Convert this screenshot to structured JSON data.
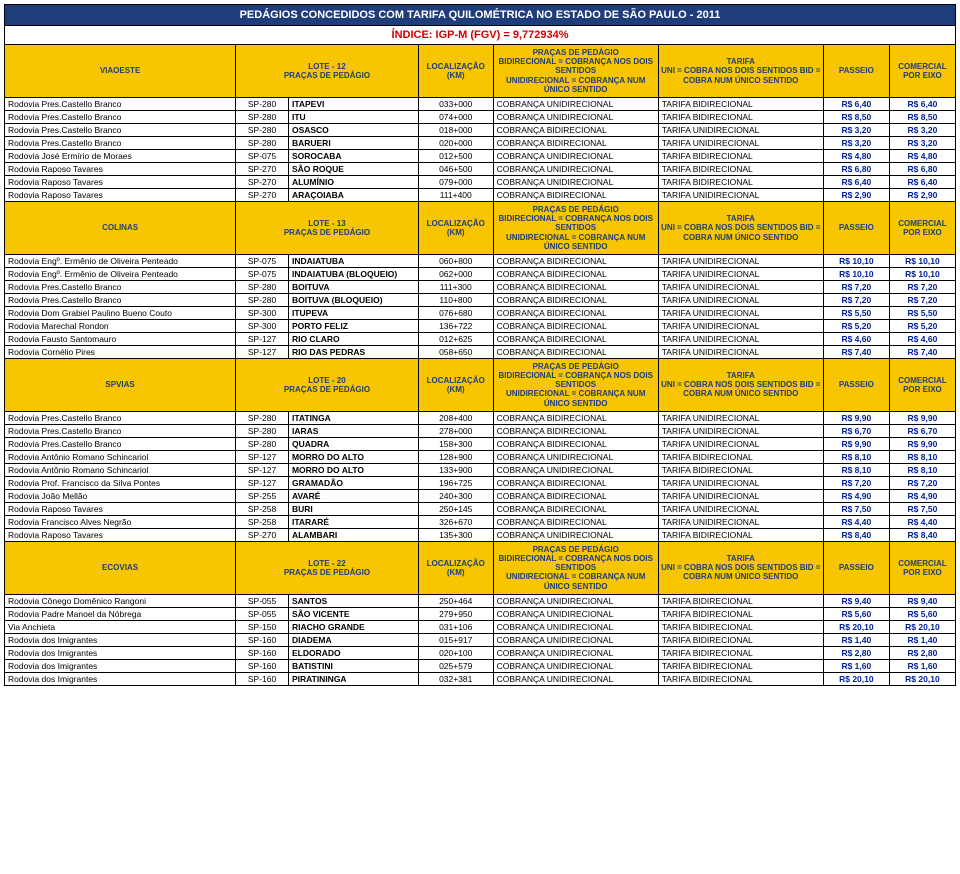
{
  "title": "PEDÁGIOS CONCEDIDOS COM TARIFA QUILOMÉTRICA NO ESTADO DE SÃO PAULO - 2011",
  "index": "ÍNDICE: IGP-M (FGV) = 9,772934%",
  "colors": {
    "title_bg": "#1f3d7a",
    "title_fg": "#ffffff",
    "index_fg": "#d10000",
    "header_bg": "#f7c600",
    "header_fg": "#1f3d7a",
    "price_fg": "#0020a0"
  },
  "header_labels": {
    "lote": "LOCALIZAÇÃO\n(KM)",
    "pracas_title": "PRAÇAS DE PEDÁGIO",
    "pracas_sub": "BIDIRECIONAL = COBRANÇA NOS DOIS SENTIDOS\nUNIDIRECIONAL = COBRANÇA NUM ÚNICO SENTIDO",
    "tarifa_title": "TARIFA",
    "tarifa_sub": "UNI = COBRA NOS DOIS SENTIDOS BID = COBRA NUM ÚNICO SENTIDO",
    "passeio": "PASSEIO",
    "comercial": "COMERCIAL\nPOR EIXO"
  },
  "sections": [
    {
      "concess": "VIAOESTE",
      "lote": "LOTE - 12\nPRAÇAS DE PEDÁGIO",
      "rows": [
        [
          "Rodovia Pres.Castello Branco",
          "SP-280",
          "ITAPEVI",
          "033+000",
          "COBRANÇA UNIDIRECIONAL",
          "TARIFA BIDIRECIONAL",
          "R$ 6,40",
          "R$ 6,40"
        ],
        [
          "Rodovia Pres.Castello Branco",
          "SP-280",
          "ITU",
          "074+000",
          "COBRANÇA UNIDIRECIONAL",
          "TARIFA BIDIRECIONAL",
          "R$ 8,50",
          "R$ 8,50"
        ],
        [
          "Rodovia Pres.Castello Branco",
          "SP-280",
          "OSASCO",
          "018+000",
          "COBRANÇA BIDIRECIONAL",
          "TARIFA UNIDIRECIONAL",
          "R$ 3,20",
          "R$ 3,20"
        ],
        [
          "Rodovia Pres.Castello Branco",
          "SP-280",
          "BARUERI",
          "020+000",
          "COBRANÇA BIDIRECIONAL",
          "TARIFA UNIDIRECIONAL",
          "R$ 3,20",
          "R$ 3,20"
        ],
        [
          "Rodovia José Ermírio de Moraes",
          "SP-075",
          "SOROCABA",
          "012+500",
          "COBRANÇA UNIDIRECIONAL",
          "TARIFA BIDIRECIONAL",
          "R$ 4,80",
          "R$ 4,80"
        ],
        [
          "Rodovia Raposo Tavares",
          "SP-270",
          "SÃO ROQUE",
          "046+500",
          "COBRANÇA UNIDIRECIONAL",
          "TARIFA BIDIRECIONAL",
          "R$ 6,80",
          "R$ 6,80"
        ],
        [
          "Rodovia Raposo Tavares",
          "SP-270",
          "ALUMÍNIO",
          "079+000",
          "COBRANÇA UNIDIRECIONAL",
          "TARIFA BIDIRECIONAL",
          "R$ 6,40",
          "R$ 6,40"
        ],
        [
          "Rodovia Raposo Tavares",
          "SP-270",
          "ARAÇOIABA",
          "111+400",
          "COBRANÇA BIDIRECIONAL",
          "TARIFA UNIDIRECIONAL",
          "R$ 2,90",
          "R$ 2,90"
        ]
      ]
    },
    {
      "concess": "COLINAS",
      "lote": "LOTE - 13\nPRAÇAS DE PEDÁGIO",
      "rows": [
        [
          "Rodovia Engº. Ermênio de Oliveira Penteado",
          "SP-075",
          "INDAIATUBA",
          "060+800",
          "COBRANÇA BIDIRECIONAL",
          "TARIFA UNIDIRECIONAL",
          "R$ 10,10",
          "R$ 10,10"
        ],
        [
          "Rodovia Engº. Ermênio de Oliveira Penteado",
          "SP-075",
          "INDAIATUBA (BLOQUEIO)",
          "062+000",
          "COBRANÇA BIDIRECIONAL",
          "TARIFA UNIDIRECIONAL",
          "R$ 10,10",
          "R$ 10,10"
        ],
        [
          "Rodovia Pres.Castello Branco",
          "SP-280",
          "BOITUVA",
          "111+300",
          "COBRANÇA BIDIRECIONAL",
          "TARIFA UNIDIRECIONAL",
          "R$ 7,20",
          "R$ 7,20"
        ],
        [
          "Rodovia Pres.Castello Branco",
          "SP-280",
          "BOITUVA (BLOQUEIO)",
          "110+800",
          "COBRANÇA BIDIRECIONAL",
          "TARIFA UNIDIRECIONAL",
          "R$ 7,20",
          "R$ 7,20"
        ],
        [
          "Rodovia Dom Grabiel Paulino Bueno Couto",
          "SP-300",
          "ITUPEVA",
          "076+680",
          "COBRANÇA BIDIRECIONAL",
          "TARIFA UNIDIRECIONAL",
          "R$ 5,50",
          "R$ 5,50"
        ],
        [
          "Rodovia Marechal Rondon",
          "SP-300",
          "PORTO FELIZ",
          "136+722",
          "COBRANÇA BIDIRECIONAL",
          "TARIFA UNIDIRECIONAL",
          "R$ 5,20",
          "R$ 5,20"
        ],
        [
          "Rodovia Fausto Santomauro",
          "SP-127",
          "RIO CLARO",
          "012+625",
          "COBRANÇA BIDIRECIONAL",
          "TARIFA UNIDIRECIONAL",
          "R$ 4,60",
          "R$ 4,60"
        ],
        [
          "Rodovia Cornélio Pires",
          "SP-127",
          "RIO DAS PEDRAS",
          "058+650",
          "COBRANÇA BIDIRECIONAL",
          "TARIFA UNIDIRECIONAL",
          "R$ 7,40",
          "R$ 7,40"
        ]
      ]
    },
    {
      "concess": "SPVIAS",
      "lote": "LOTE - 20\nPRAÇAS DE PEDÁGIO",
      "rows": [
        [
          "Rodovia Pres.Castello Branco",
          "SP-280",
          "ITATINGA",
          "208+400",
          "COBRANÇA BIDIRECIONAL",
          "TARIFA UNIDIRECIONAL",
          "R$ 9,90",
          "R$ 9,90"
        ],
        [
          "Rodovia Pres.Castello Branco",
          "SP-280",
          "IARAS",
          "278+000",
          "COBRANÇA BIDIRECIONAL",
          "TARIFA UNIDIRECIONAL",
          "R$ 6,70",
          "R$ 6,70"
        ],
        [
          "Rodovia Pres.Castello Branco",
          "SP-280",
          "QUADRA",
          "158+300",
          "COBRANÇA BIDIRECIONAL",
          "TARIFA UNIDIRECIONAL",
          "R$ 9,90",
          "R$ 9,90"
        ],
        [
          "Rodovia Antônio Romano Schincariol",
          "SP-127",
          "MORRO DO ALTO",
          "128+900",
          "COBRANÇA UNIDIRECIONAL",
          "TARIFA BIDIRECIONAL",
          "R$ 8,10",
          "R$ 8,10"
        ],
        [
          "Rodovia Antônio Romano Schincariol",
          "SP-127",
          "MORRO DO ALTO",
          "133+900",
          "COBRANÇA UNIDIRECIONAL",
          "TARIFA BIDIRECIONAL",
          "R$ 8,10",
          "R$ 8,10"
        ],
        [
          "Rodovia Prof. Francisco da Silva Pontes",
          "SP-127",
          "GRAMADÃO",
          "196+725",
          "COBRANÇA BIDIRECIONAL",
          "TARIFA UNIDIRECIONAL",
          "R$ 7,20",
          "R$ 7,20"
        ],
        [
          "Rodovia João Mellão",
          "SP-255",
          "AVARÉ",
          "240+300",
          "COBRANÇA BIDIRECIONAL",
          "TARIFA UNIDIRECIONAL",
          "R$ 4,90",
          "R$ 4,90"
        ],
        [
          "Rodovia Raposo Tavares",
          "SP-258",
          "BURI",
          "250+145",
          "COBRANÇA BIDIRECIONAL",
          "TARIFA UNIDIRECIONAL",
          "R$ 7,50",
          "R$ 7,50"
        ],
        [
          "Rodovia Francisco Alves Negrão",
          "SP-258",
          "ITARARÉ",
          "326+670",
          "COBRANÇA BIDIRECIONAL",
          "TARIFA UNIDIRECIONAL",
          "R$ 4,40",
          "R$ 4,40"
        ],
        [
          "Rodovia Raposo Tavares",
          "SP-270",
          "ALAMBARI",
          "135+300",
          "COBRANÇA UNIDIRECIONAL",
          "TARIFA BIDIRECIONAL",
          "R$ 8,40",
          "R$ 8,40"
        ]
      ]
    },
    {
      "concess": "ECOVIAS",
      "lote": "LOTE - 22\nPRAÇAS DE PEDÁGIO",
      "rows": [
        [
          "Rodovia Cônego Domênico Rangoni",
          "SP-055",
          "SANTOS",
          "250+464",
          "COBRANÇA UNIDIRECIONAL",
          "TARIFA BIDIRECIONAL",
          "R$ 9,40",
          "R$ 9,40"
        ],
        [
          "Rodovia Padre Manoel da Nóbrega",
          "SP-055",
          "SÃO VICENTE",
          "279+950",
          "COBRANÇA UNIDIRECIONAL",
          "TARIFA BIDIRECIONAL",
          "R$ 5,60",
          "R$ 5,60"
        ],
        [
          "Via Anchieta",
          "SP-150",
          "RIACHO GRANDE",
          "031+106",
          "COBRANÇA UNIDIRECIONAL",
          "TARIFA BIDIRECIONAL",
          "R$ 20,10",
          "R$ 20,10"
        ],
        [
          "Rodovia dos Imigrantes",
          "SP-160",
          "DIADEMA",
          "015+917",
          "COBRANÇA UNIDIRECIONAL",
          "TARIFA BIDIRECIONAL",
          "R$ 1,40",
          "R$ 1,40"
        ],
        [
          "Rodovia dos Imigrantes",
          "SP-160",
          "ELDORADO",
          "020+100",
          "COBRANÇA UNIDIRECIONAL",
          "TARIFA BIDIRECIONAL",
          "R$ 2,80",
          "R$ 2,80"
        ],
        [
          "Rodovia dos Imigrantes",
          "SP-160",
          "BATISTINI",
          "025+579",
          "COBRANÇA UNIDIRECIONAL",
          "TARIFA BIDIRECIONAL",
          "R$ 1,60",
          "R$ 1,60"
        ],
        [
          "Rodovia dos Imigrantes",
          "SP-160",
          "PIRATININGA",
          "032+381",
          "COBRANÇA UNIDIRECIONAL",
          "TARIFA BIDIRECIONAL",
          "R$ 20,10",
          "R$ 20,10"
        ]
      ]
    }
  ]
}
